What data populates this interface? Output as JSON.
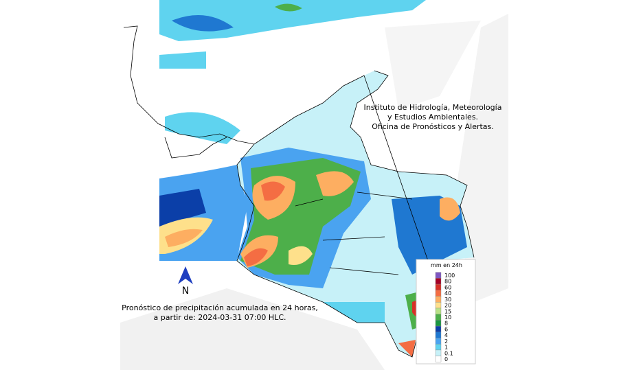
{
  "institution": {
    "lines": [
      "Instituto de Hidrología, Meteorología",
      "y Estudios Ambientales.",
      "Oficina de Pronósticos y Alertas."
    ]
  },
  "caption": {
    "lines": [
      "Pronóstico de precipitación acumulada en 24 horas,",
      "a partir de: 2024-03-31 07:00 HLC."
    ]
  },
  "north_label": "N",
  "legend": {
    "title": "mm en 24h",
    "levels": [
      100,
      80,
      60,
      40,
      30,
      20,
      15,
      10,
      8,
      6,
      4,
      2,
      1,
      0.1,
      0
    ],
    "colors": [
      "#7e57c2",
      "#a50026",
      "#d73027",
      "#f46d43",
      "#fdae61",
      "#fee08b",
      "#b8e186",
      "#4daf4a",
      "#1a9641",
      "#0b3fa8",
      "#1f78d1",
      "#4aa3f0",
      "#5fd3ef",
      "#c7f1f8",
      "#ffffff"
    ]
  }
}
